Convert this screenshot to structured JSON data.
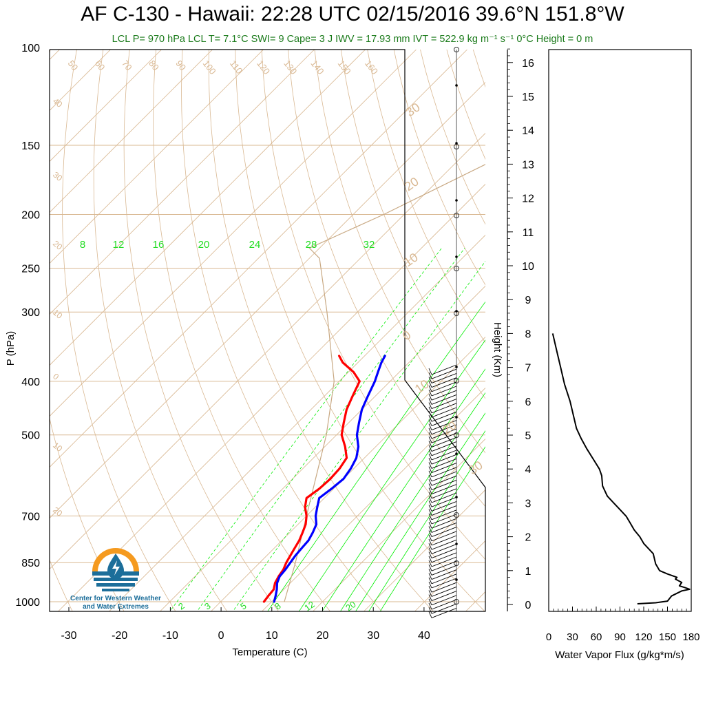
{
  "title": "AF C-130 - Hawaii: 22:28 UTC 02/15/2016  39.6°N 151.8°W",
  "subtitle": "LCL P= 970 hPa  LCL T= 7.1°C  SWI= 9  Cape= 3 J  IWV = 17.93 mm  IVT = 522.9 kg m⁻¹ s⁻¹  0°C Height = 0 m",
  "logo": {
    "name": "Center for Western Weather and Water Extremes",
    "line1": "Center for Western Weather",
    "line2": "and Water Extremes"
  },
  "colors": {
    "temperature": "#ff0000",
    "dewpoint": "#0000ff",
    "isotherms_adiabats": "#d9b892",
    "mixing_ratio": "#00ee00",
    "flux": "#000000",
    "subtitle": "#1a7a1a"
  },
  "chart_data": [
    {
      "type": "line",
      "subtype": "skew-T log-P sounding",
      "xlabel": "Temperature (C)",
      "ylabel": "P (hPa)",
      "xlim": [
        -34,
        52
      ],
      "ylim": [
        1050,
        100
      ],
      "yscale": "log",
      "x_ticks": [
        "-30",
        "-20",
        "-10",
        "0",
        "10",
        "20",
        "30",
        "40"
      ],
      "y_ticks": [
        "100",
        "150",
        "200",
        "250",
        "300",
        "400",
        "500",
        "700",
        "850",
        "1000"
      ],
      "height_axis": {
        "label": "Height (Km)",
        "ticks": [
          "0",
          "1",
          "2",
          "3",
          "4",
          "5",
          "6",
          "7",
          "8",
          "9",
          "10",
          "11",
          "12",
          "13",
          "14",
          "15",
          "16"
        ]
      },
      "skewed_isotherm_labels": [
        "50",
        "60",
        "70",
        "80",
        "90",
        "100",
        "110",
        "120",
        "130",
        "140",
        "150",
        "160"
      ],
      "dry_adiabat_labels": [
        "40",
        "30",
        "20",
        "10",
        "0",
        "10",
        "20"
      ],
      "moist_adiabat_labels": [
        "30",
        "20",
        "10",
        "0",
        "10",
        "20",
        "30"
      ],
      "mixing_ratio_top_labels": [
        "8",
        "12",
        "16",
        "20",
        "24",
        "28",
        "32"
      ],
      "mixing_ratio_bottom_labels": [
        "2",
        "3",
        "5",
        "8",
        "12",
        "20"
      ],
      "series": [
        {
          "name": "Temperature",
          "pressure": [
            1000,
            975,
            950,
            925,
            900,
            875,
            850,
            825,
            800,
            775,
            750,
            725,
            700,
            675,
            650,
            625,
            600,
            575,
            550,
            525,
            500,
            475,
            450,
            425,
            400,
            385,
            370,
            360
          ],
          "value": [
            8.5,
            8.2,
            8.0,
            7.0,
            6.4,
            6.0,
            5.2,
            4.6,
            4.0,
            3.4,
            2.5,
            1.5,
            0.0,
            -2.0,
            -3.5,
            -2.8,
            -2.6,
            -2.8,
            -3.5,
            -6.0,
            -9.0,
            -11.0,
            -13.0,
            -14.5,
            -16.0,
            -19.0,
            -23.0,
            -25.0
          ]
        },
        {
          "name": "Dewpoint",
          "pressure": [
            1000,
            975,
            950,
            925,
            900,
            875,
            850,
            825,
            800,
            775,
            750,
            725,
            700,
            675,
            650,
            625,
            600,
            575,
            550,
            525,
            500,
            475,
            450,
            425,
            400,
            385,
            370,
            360
          ],
          "value": [
            10.5,
            9.6,
            8.6,
            7.4,
            6.6,
            6.4,
            6.0,
            5.6,
            5.4,
            5.2,
            4.5,
            3.6,
            1.8,
            0.4,
            -1.0,
            -0.4,
            0.0,
            -0.6,
            -1.6,
            -3.4,
            -6.0,
            -8.0,
            -10.0,
            -11.5,
            -13.0,
            -14.2,
            -15.4,
            -16.0
          ]
        }
      ]
    },
    {
      "type": "line",
      "xlabel": "Water Vapor Flux (g/kg*m/s)",
      "ylabel": "",
      "xlim": [
        0,
        180
      ],
      "ylim": [
        0,
        16.5
      ],
      "x_ticks": [
        "0",
        "30",
        "60",
        "90",
        "120",
        "150",
        "180"
      ],
      "series": [
        {
          "name": "Water Vapor Flux",
          "height_km": [
            0.02,
            0.05,
            0.1,
            0.25,
            0.4,
            0.45,
            0.5,
            0.55,
            0.65,
            0.75,
            0.8,
            0.9,
            1.0,
            1.2,
            1.5,
            1.8,
            2.0,
            2.2,
            2.4,
            2.6,
            2.8,
            3.0,
            3.2,
            3.5,
            3.8,
            4.0,
            4.3,
            4.6,
            4.9,
            5.2,
            5.5,
            6.0,
            6.5,
            7.0,
            7.5,
            8.0
          ],
          "value": [
            112,
            135,
            150,
            155,
            168,
            178,
            172,
            165,
            168,
            160,
            162,
            150,
            140,
            135,
            132,
            120,
            115,
            108,
            103,
            98,
            90,
            82,
            74,
            68,
            67,
            64,
            56,
            48,
            41,
            35,
            32,
            27,
            20,
            15,
            10,
            5
          ]
        }
      ]
    }
  ]
}
